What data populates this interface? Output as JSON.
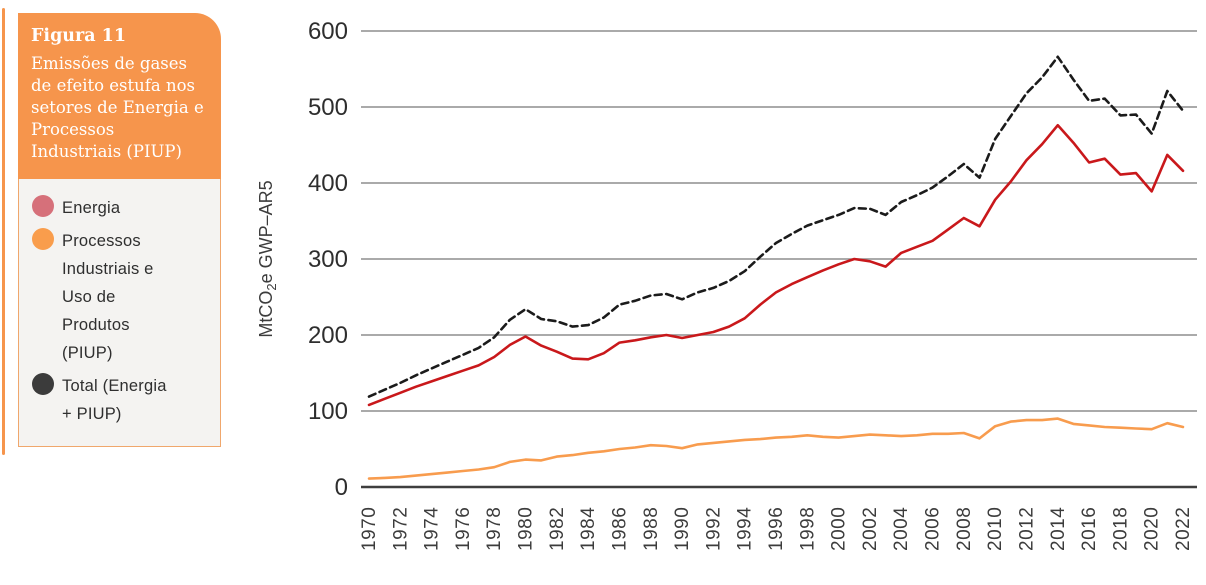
{
  "figure": {
    "label": "Figura 11",
    "title": "Emissões de gases de efeito estufa nos setores de Energia e Processos Industriais (PIUP)"
  },
  "legend": {
    "items": [
      {
        "label": "Energia",
        "color": "#d6707a"
      },
      {
        "label": "Processos Industriais e Uso de Produtos (PIUP)",
        "color": "#f99d4c"
      },
      {
        "label": "Total (Energia + PIUP)",
        "color": "#3b3b3b"
      }
    ]
  },
  "chart_data": {
    "type": "line",
    "title": "",
    "xlabel": "",
    "ylabel": "MtCO₂e GWP–AR5",
    "ylim": [
      0,
      600
    ],
    "yticks": [
      0,
      100,
      200,
      300,
      400,
      500,
      600
    ],
    "grid": "horizontal",
    "legend_position": "left-card",
    "x": [
      1970,
      1971,
      1972,
      1973,
      1974,
      1975,
      1976,
      1977,
      1978,
      1979,
      1980,
      1981,
      1982,
      1983,
      1984,
      1985,
      1986,
      1987,
      1988,
      1989,
      1990,
      1991,
      1992,
      1993,
      1994,
      1995,
      1996,
      1997,
      1998,
      1999,
      2000,
      2001,
      2002,
      2003,
      2004,
      2005,
      2006,
      2007,
      2008,
      2009,
      2010,
      2011,
      2012,
      2013,
      2014,
      2015,
      2016,
      2017,
      2018,
      2019,
      2020,
      2021,
      2022
    ],
    "x_tick_labels": [
      "1970",
      "1972",
      "1974",
      "1976",
      "1978",
      "1980",
      "1982",
      "1984",
      "1986",
      "1988",
      "1990",
      "1992",
      "1994",
      "1996",
      "1998",
      "2000",
      "2002",
      "2004",
      "2006",
      "2008",
      "2010",
      "2012",
      "2014",
      "2016",
      "2018",
      "2020",
      "2022"
    ],
    "series": [
      {
        "name": "Energia",
        "color": "#c9181b",
        "style": "solid",
        "values": [
          108,
          116,
          124,
          132,
          139,
          146,
          153,
          160,
          171,
          187,
          198,
          186,
          178,
          169,
          168,
          176,
          190,
          193,
          197,
          200,
          196,
          200,
          204,
          211,
          222,
          240,
          256,
          267,
          276,
          285,
          293,
          300,
          297,
          290,
          308,
          316,
          324,
          339,
          354,
          343,
          378,
          402,
          430,
          451,
          476,
          453,
          427,
          432,
          411,
          413,
          389,
          437,
          416
        ]
      },
      {
        "name": "Processos Industriais e Uso de Produtos (PIUP)",
        "color": "#f89c4e",
        "style": "solid",
        "values": [
          11,
          12,
          13,
          15,
          17,
          19,
          21,
          23,
          26,
          33,
          36,
          35,
          40,
          42,
          45,
          47,
          50,
          52,
          55,
          54,
          51,
          56,
          58,
          60,
          62,
          63,
          65,
          66,
          68,
          66,
          65,
          67,
          69,
          68,
          67,
          68,
          70,
          70,
          71,
          64,
          80,
          86,
          88,
          88,
          90,
          83,
          81,
          79,
          78,
          77,
          76,
          84,
          79
        ]
      },
      {
        "name": "Total (Energia + PIUP)",
        "color": "#1b1b1b",
        "style": "dashed",
        "values": [
          119,
          128,
          137,
          147,
          156,
          165,
          174,
          183,
          197,
          220,
          234,
          221,
          218,
          211,
          213,
          223,
          240,
          245,
          252,
          254,
          247,
          256,
          262,
          271,
          284,
          303,
          321,
          333,
          344,
          351,
          358,
          367,
          366,
          358,
          375,
          384,
          394,
          409,
          425,
          407,
          458,
          488,
          518,
          539,
          566,
          536,
          508,
          511,
          489,
          490,
          465,
          521,
          495
        ]
      }
    ]
  }
}
